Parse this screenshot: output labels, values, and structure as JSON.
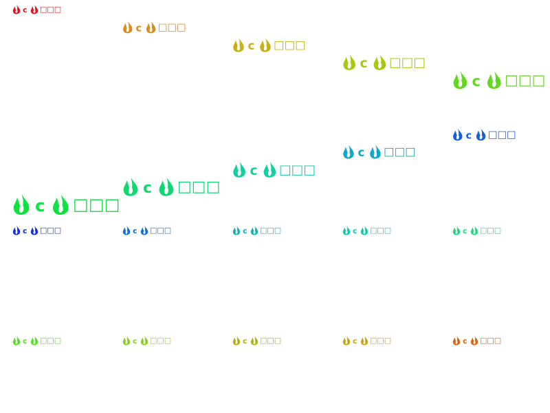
{
  "items": [
    {
      "label": "c",
      "text": "□□□",
      "color": "#e8101a"
    },
    {
      "label": "c",
      "text": "□□□",
      "color": "#e08a14"
    },
    {
      "label": "c",
      "text": "□□□",
      "color": "#c8b010"
    },
    {
      "label": "c",
      "text": "□□□",
      "color": "#a8c810"
    },
    {
      "label": "c",
      "text": "□□□",
      "color": "#60d820"
    },
    {
      "label": "c",
      "text": "□□□",
      "color": "#10e040"
    },
    {
      "label": "c",
      "text": "□□□",
      "color": "#10d870"
    },
    {
      "label": "c",
      "text": "□□□",
      "color": "#10d0a0"
    },
    {
      "label": "c",
      "text": "□□□",
      "color": "#10a8c8"
    },
    {
      "label": "c",
      "text": "□□□",
      "color": "#1060e0"
    },
    {
      "label": "c",
      "text": "□□□",
      "color": "#1030e8"
    },
    {
      "label": "c",
      "text": "□□□",
      "color": "#1070e0"
    },
    {
      "label": "c",
      "text": "□□□",
      "color": "#10b0c0"
    },
    {
      "label": "c",
      "text": "□□□",
      "color": "#10c8b0"
    },
    {
      "label": "c",
      "text": "□□□",
      "color": "#20d880"
    },
    {
      "label": "c",
      "text": "□□□",
      "color": "#50e020"
    },
    {
      "label": "c",
      "text": "□□□",
      "color": "#88d020"
    },
    {
      "label": "c",
      "text": "□□□",
      "color": "#b0b010"
    },
    {
      "label": "c",
      "text": "□□□",
      "color": "#d0a010"
    },
    {
      "label": "c",
      "text": "□□□",
      "color": "#e06010"
    }
  ]
}
